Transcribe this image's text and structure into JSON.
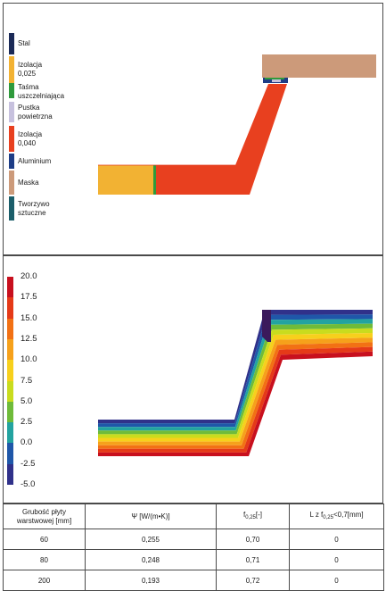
{
  "materials": {
    "legend": [
      {
        "label": "Stal",
        "color": "#1b2a57"
      },
      {
        "label": "Izolacja\n0,025",
        "color": "#f2b233"
      },
      {
        "label": "Taśma\nuszczelniająca",
        "color": "#2f9a3c"
      },
      {
        "label": "Pustka\npowietrzna",
        "color": "#c7c1de"
      },
      {
        "label": "Izolacja\n0,040",
        "color": "#e8401f"
      },
      {
        "label": "Aluminium",
        "color": "#1e3d86"
      },
      {
        "label": "Maska",
        "color": "#cc9a7a"
      },
      {
        "label": "Tworzywo\nsztuczne",
        "color": "#1b5e6a"
      }
    ]
  },
  "thermal": {
    "scale": [
      "20.0",
      "17.5",
      "15.0",
      "12.5",
      "10.0",
      "7.5",
      "5.0",
      "2.5",
      "0.0",
      "-2.5",
      "-5.0"
    ],
    "colors": [
      "#c8101e",
      "#e53a18",
      "#f27114",
      "#f6a11b",
      "#f7d01c",
      "#c9dc1e",
      "#6fbb3a",
      "#23a3a0",
      "#1f57a9",
      "#30318a",
      "#3b1a5c"
    ]
  },
  "table": {
    "headers": {
      "col1": "Grubość płyty\nwarstwowej [mm]",
      "col2": "Ψ [W/(m•K)]",
      "col3_main": "f",
      "col3_sub": "0,25",
      "col3_tail": "[-]",
      "col4_main": "L z f",
      "col4_sub": "0,25",
      "col4_tail": "<0,7[mm]"
    },
    "rows": [
      {
        "thickness": "60",
        "psi": "0,255",
        "f": "0,70",
        "l": "0"
      },
      {
        "thickness": "80",
        "psi": "0,248",
        "f": "0,71",
        "l": "0"
      },
      {
        "thickness": "200",
        "psi": "0,193",
        "f": "0,72",
        "l": "0"
      }
    ]
  }
}
